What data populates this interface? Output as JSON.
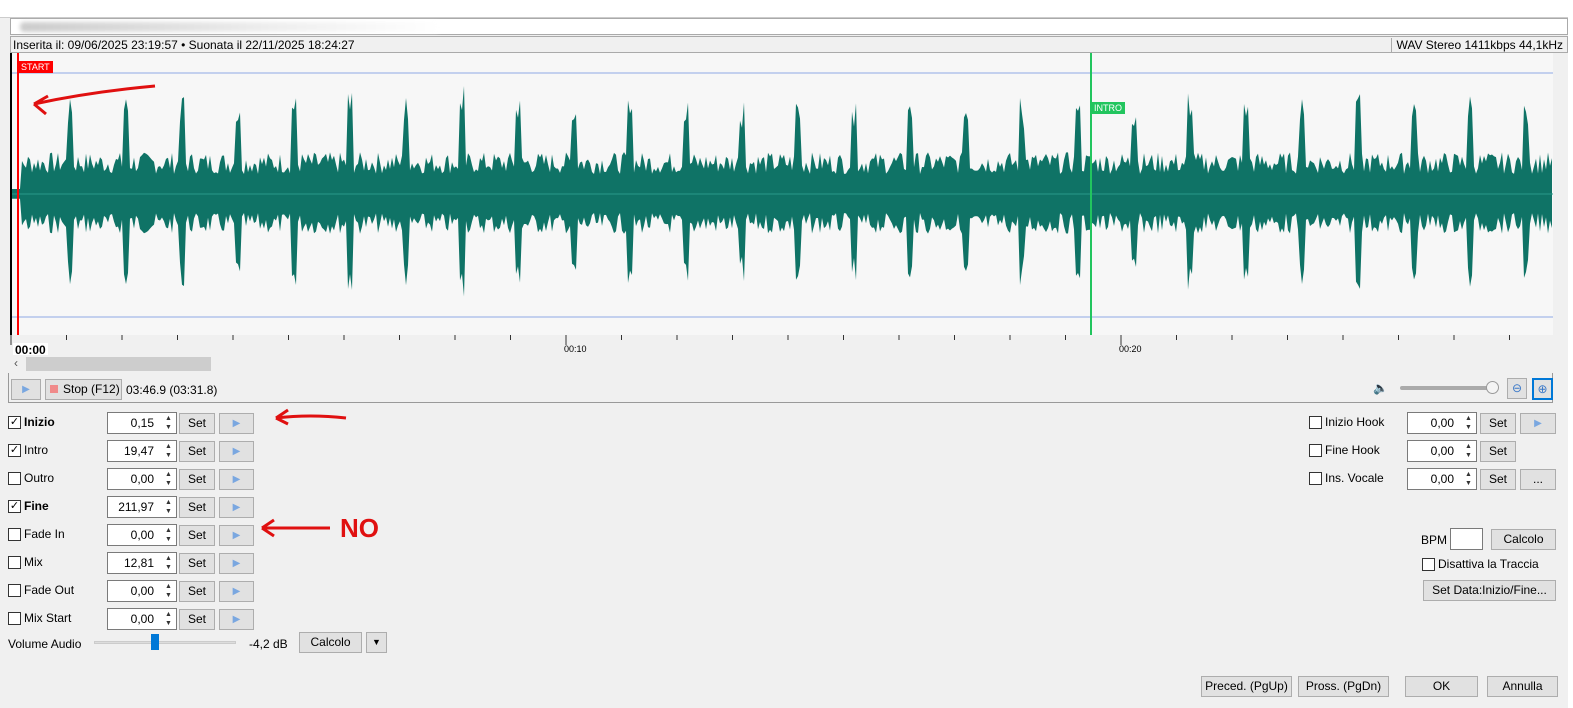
{
  "info": {
    "inserted": "Inserita il: 09/06/2025 23:19:57 • Suonata il 22/11/2025 18:24:27",
    "format": "WAV Stereo 1411kbps 44,1kHz"
  },
  "markers": {
    "start": "START",
    "intro": "INTRO"
  },
  "ruler": {
    "t0": "00:00",
    "t1": "00:10",
    "t2": "00:20"
  },
  "transport": {
    "stop": "Stop (F12)",
    "time": "03:46.9 (03:31.8)",
    "volume_level": 0.95
  },
  "cues": [
    {
      "label": "Inizio",
      "checked": true,
      "bold": true,
      "value": "0,15"
    },
    {
      "label": "Intro",
      "checked": true,
      "bold": false,
      "value": "19,47"
    },
    {
      "label": "Outro",
      "checked": false,
      "bold": false,
      "value": "0,00"
    },
    {
      "label": "Fine",
      "checked": true,
      "bold": true,
      "value": "211,97"
    },
    {
      "label": "Fade In",
      "checked": false,
      "bold": false,
      "value": "0,00"
    },
    {
      "label": "Mix",
      "checked": false,
      "bold": false,
      "value": "12,81"
    },
    {
      "label": "Fade Out",
      "checked": false,
      "bold": false,
      "value": "0,00"
    },
    {
      "label": "Mix Start",
      "checked": false,
      "bold": false,
      "value": "0,00"
    }
  ],
  "set_label": "Set",
  "hooks": [
    {
      "label": "Inizio Hook",
      "value": "0,00"
    },
    {
      "label": "Fine Hook",
      "value": "0,00"
    },
    {
      "label": "Ins. Vocale",
      "value": "0,00"
    }
  ],
  "more_label": "...",
  "volume": {
    "label": "Volume Audio",
    "value": "-4,2 dB",
    "calc": "Calcolo",
    "slider_fraction": 0.43
  },
  "bpm": {
    "label": "BPM",
    "value": "",
    "calc": "Calcolo"
  },
  "disable": "Disattiva la Traccia",
  "setdata": "Set Data:Inizio/Fine...",
  "footer": {
    "prev": "Preced. (PgUp)",
    "next": "Pross. (PgDn)",
    "ok": "OK",
    "cancel": "Annulla"
  },
  "annotation": {
    "no": "NO"
  },
  "colors": {
    "wave": "#0f7366",
    "start": "#ff0000",
    "intro": "#22c55e"
  }
}
